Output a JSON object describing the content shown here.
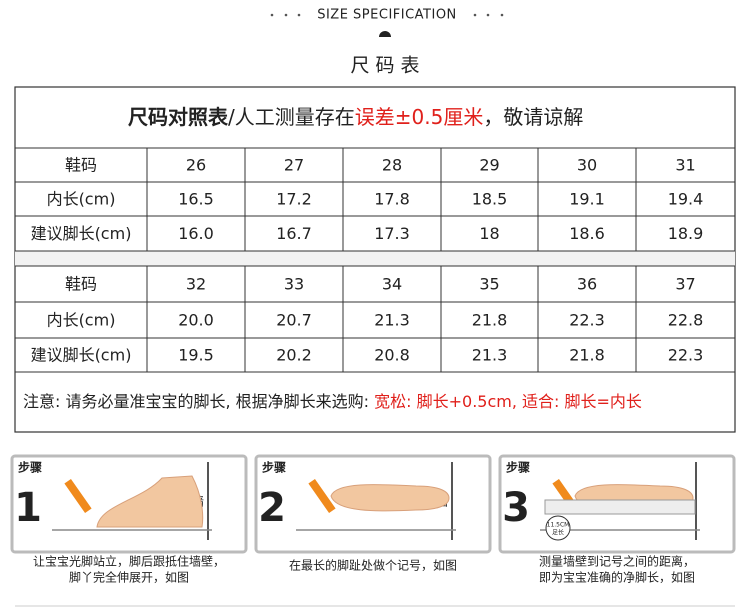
{
  "header": {
    "subtitle": "SIZE SPECIFICATION",
    "title": "尺 码 表"
  },
  "table": {
    "title": {
      "bold": "尺码对照表",
      "normal": "/人工测量存在",
      "red": "误差±0.5厘米",
      "tail": "，敬请谅解"
    },
    "blocks": [
      {
        "rows": [
          [
            "鞋码",
            "26",
            "27",
            "28",
            "29",
            "30",
            "31"
          ],
          [
            "内长(cm)",
            "16.5",
            "17.2",
            "17.8",
            "18.5",
            "19.1",
            "19.4"
          ],
          [
            "建议脚长(cm)",
            "16.0",
            "16.7",
            "17.3",
            "18",
            "18.6",
            "18.9"
          ]
        ]
      },
      {
        "rows": [
          [
            "鞋码",
            "32",
            "33",
            "34",
            "35",
            "36",
            "37"
          ],
          [
            "内长(cm)",
            "20.0",
            "20.7",
            "21.3",
            "21.8",
            "22.3",
            "22.8"
          ],
          [
            "建议脚长(cm)",
            "19.5",
            "20.2",
            "20.8",
            "21.3",
            "21.8",
            "22.3"
          ]
        ]
      }
    ],
    "note": {
      "text": "注意: 请务必量准宝宝的脚长, 根据净脚长来选购: ",
      "red": "宽松: 脚长+0.5cm, 适合: 脚长=内长"
    }
  },
  "steps": [
    {
      "label": "步骤",
      "number": "1",
      "wall": "靠墙",
      "caption": [
        "让宝宝光脚站立，脚后跟抵住墙壁，",
        "脚丫完全伸展开，如图"
      ]
    },
    {
      "label": "步骤",
      "number": "2",
      "wall": "靠墙",
      "caption": [
        "在最长的脚趾处做个记号，如图"
      ]
    },
    {
      "label": "步骤",
      "number": "3",
      "wall": "靠墙",
      "ruler": "11.5CM",
      "ruler_sub": "足长",
      "caption": [
        "测量墙壁到记号之间的距离，",
        "即为宝宝准确的净脚长，如图"
      ]
    }
  ]
}
